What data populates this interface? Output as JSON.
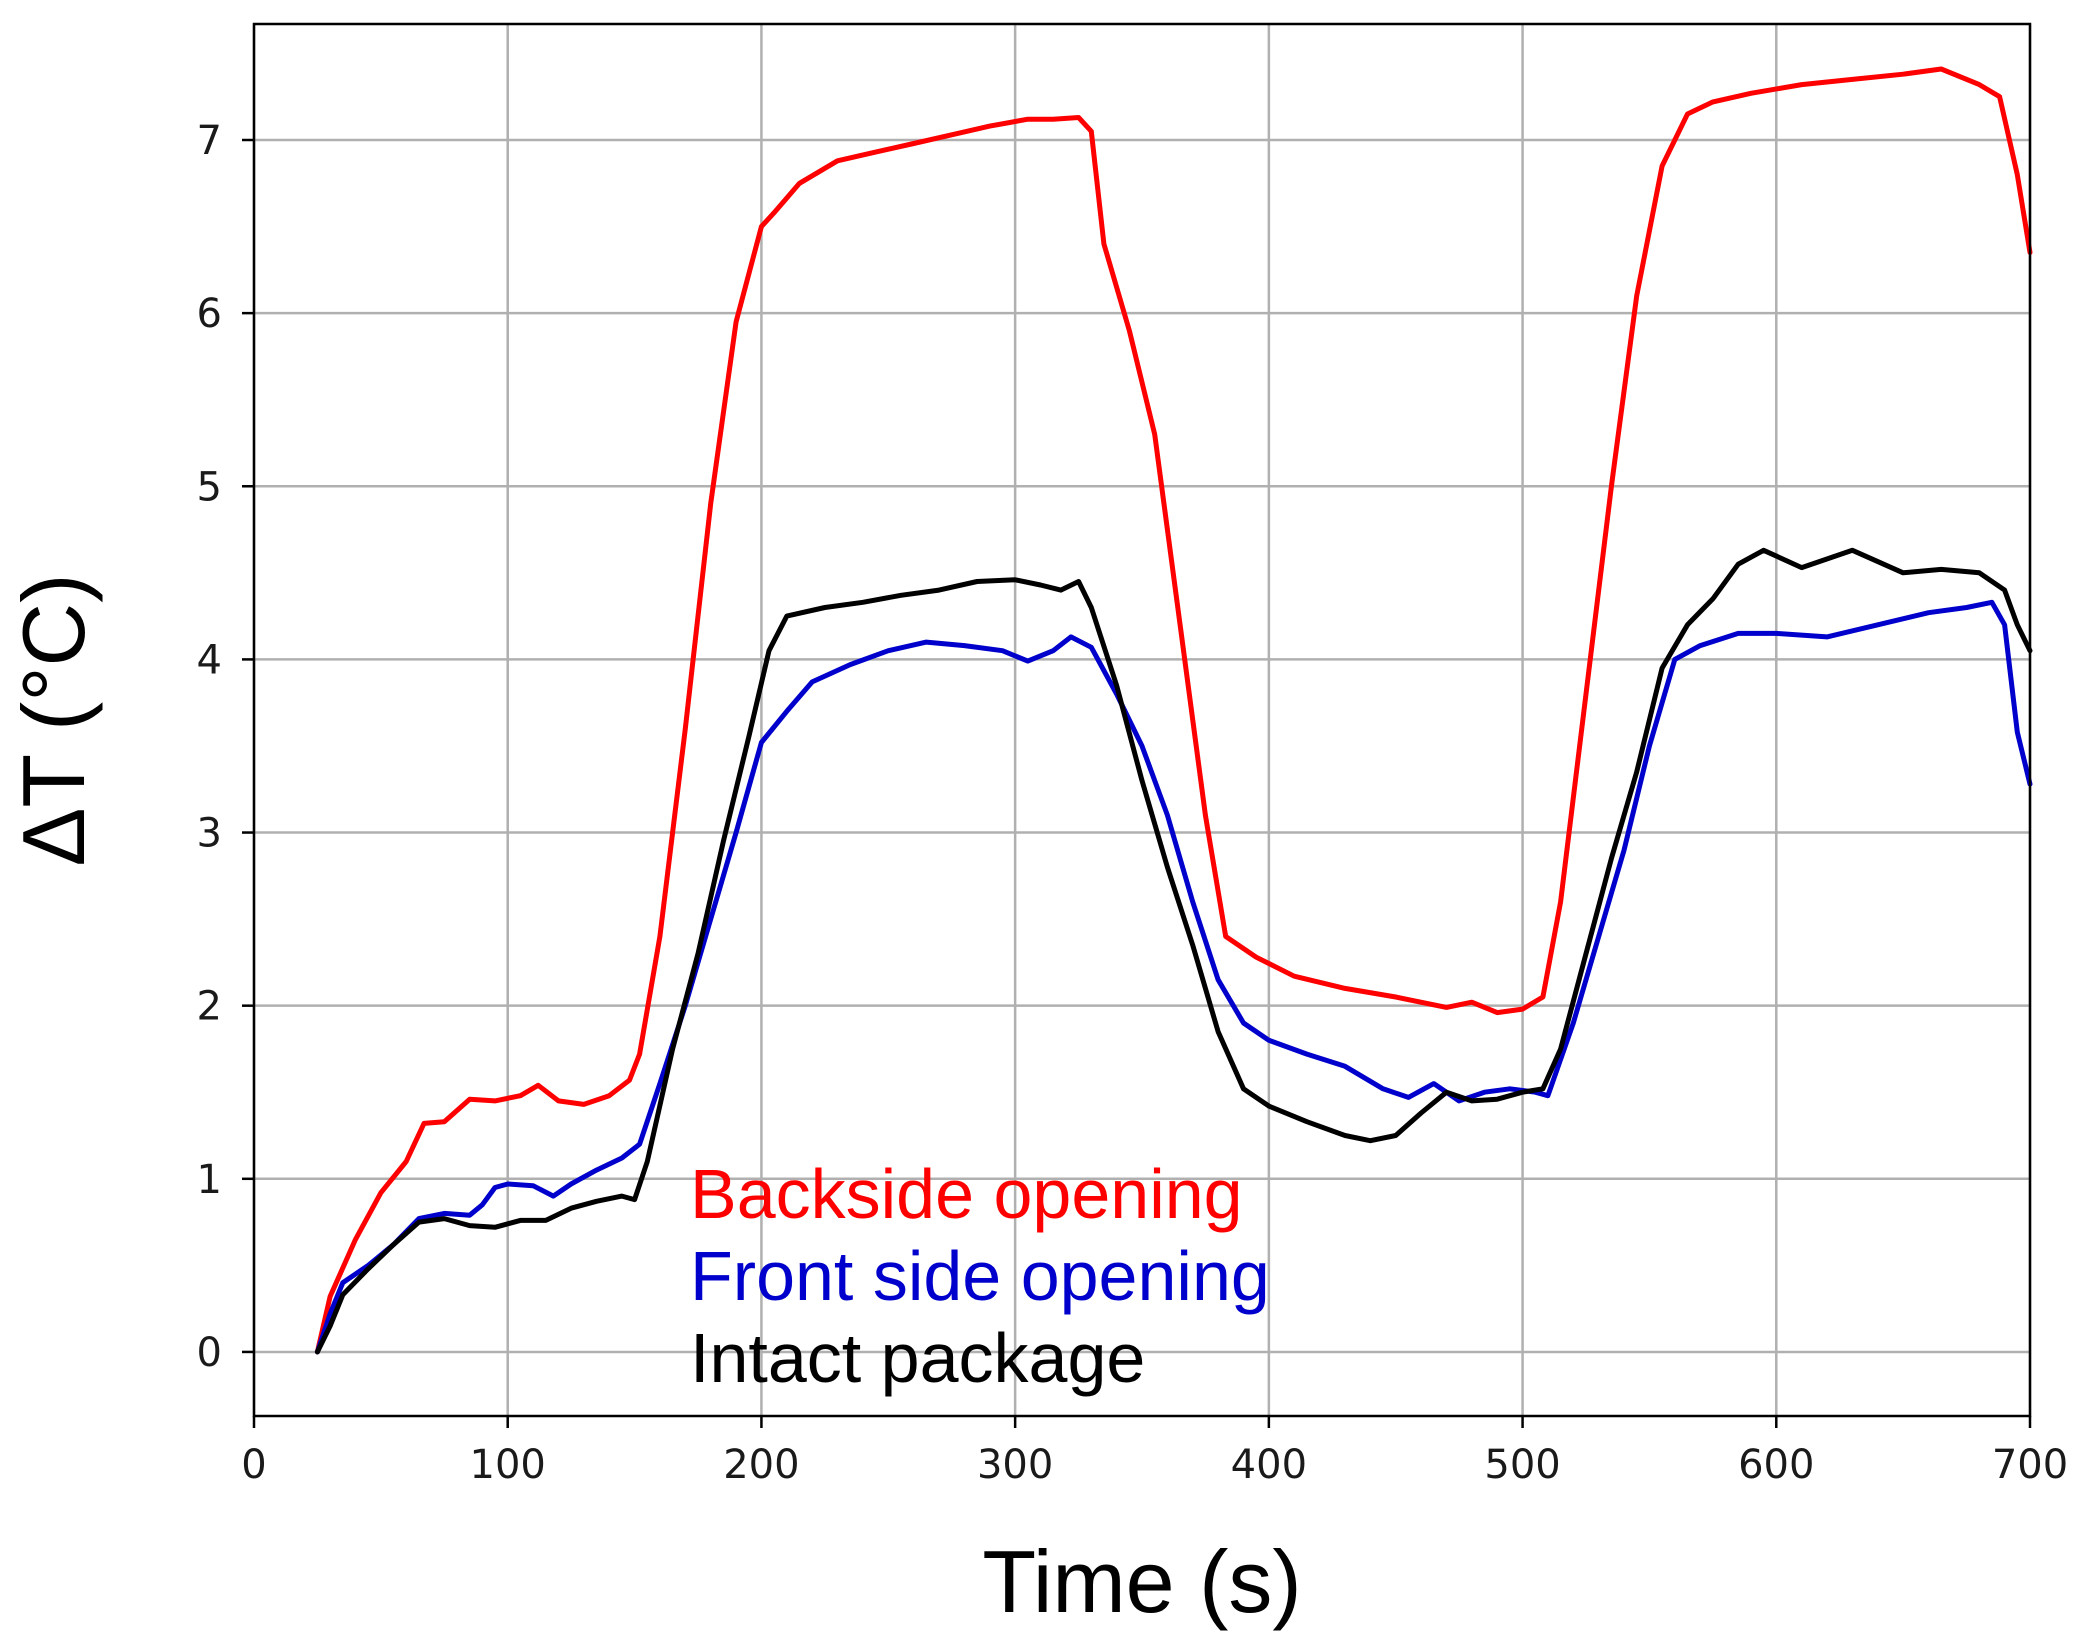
{
  "chart_data": {
    "type": "line",
    "title": "",
    "xlabel": "Time (s)",
    "ylabel": "ΔT (°C)",
    "xlim": [
      0,
      700
    ],
    "ylim": [
      -0.37,
      7.67
    ],
    "xticks": [
      0,
      100,
      200,
      300,
      400,
      500,
      600,
      700
    ],
    "yticks": [
      0,
      1,
      2,
      3,
      4,
      5,
      6,
      7
    ],
    "grid": true,
    "legend_position": "lower-center",
    "series": [
      {
        "name": "Backside opening",
        "color": "#ff0000",
        "x": [
          25,
          30,
          40,
          50,
          60,
          67,
          75,
          85,
          95,
          105,
          112,
          120,
          130,
          140,
          148,
          152,
          160,
          170,
          180,
          190,
          200,
          205,
          215,
          230,
          245,
          260,
          275,
          290,
          305,
          315,
          325,
          330,
          335,
          345,
          355,
          365,
          375,
          383,
          395,
          410,
          430,
          450,
          470,
          480,
          490,
          500,
          508,
          515,
          525,
          535,
          545,
          555,
          565,
          575,
          590,
          610,
          630,
          650,
          665,
          680,
          688,
          695,
          700
        ],
        "y": [
          0.0,
          0.32,
          0.65,
          0.92,
          1.1,
          1.32,
          1.33,
          1.46,
          1.45,
          1.48,
          1.54,
          1.45,
          1.43,
          1.48,
          1.57,
          1.72,
          2.4,
          3.6,
          4.9,
          5.95,
          6.5,
          6.58,
          6.75,
          6.88,
          6.93,
          6.98,
          7.03,
          7.08,
          7.12,
          7.12,
          7.13,
          7.05,
          6.4,
          5.9,
          5.3,
          4.2,
          3.1,
          2.4,
          2.28,
          2.17,
          2.1,
          2.05,
          1.99,
          2.02,
          1.96,
          1.98,
          2.05,
          2.6,
          3.8,
          5.0,
          6.1,
          6.85,
          7.15,
          7.22,
          7.27,
          7.32,
          7.35,
          7.38,
          7.41,
          7.32,
          7.25,
          6.8,
          6.35
        ]
      },
      {
        "name": "Front side opening",
        "color": "#0000cc",
        "x": [
          25,
          30,
          35,
          45,
          55,
          65,
          75,
          85,
          90,
          95,
          100,
          110,
          118,
          125,
          135,
          145,
          152,
          160,
          170,
          180,
          190,
          200,
          210,
          220,
          235,
          250,
          265,
          280,
          295,
          305,
          315,
          322,
          330,
          340,
          350,
          360,
          370,
          380,
          390,
          400,
          415,
          430,
          445,
          455,
          465,
          475,
          485,
          495,
          505,
          510,
          520,
          530,
          540,
          550,
          560,
          570,
          585,
          600,
          620,
          640,
          660,
          675,
          685,
          690,
          695,
          700
        ],
        "y": [
          0.0,
          0.22,
          0.4,
          0.5,
          0.62,
          0.77,
          0.8,
          0.79,
          0.85,
          0.95,
          0.97,
          0.96,
          0.9,
          0.97,
          1.05,
          1.12,
          1.2,
          1.55,
          2.0,
          2.5,
          3.0,
          3.52,
          3.7,
          3.87,
          3.97,
          4.05,
          4.1,
          4.08,
          4.05,
          3.99,
          4.05,
          4.13,
          4.07,
          3.8,
          3.5,
          3.1,
          2.6,
          2.15,
          1.9,
          1.8,
          1.72,
          1.65,
          1.52,
          1.47,
          1.55,
          1.45,
          1.5,
          1.52,
          1.5,
          1.48,
          1.9,
          2.4,
          2.9,
          3.5,
          4.0,
          4.08,
          4.15,
          4.15,
          4.13,
          4.2,
          4.27,
          4.3,
          4.33,
          4.2,
          3.58,
          3.28
        ]
      },
      {
        "name": "Intact package",
        "color": "#000000",
        "x": [
          25,
          30,
          35,
          45,
          55,
          65,
          75,
          85,
          95,
          105,
          115,
          125,
          135,
          145,
          150,
          155,
          165,
          175,
          185,
          195,
          203,
          210,
          225,
          240,
          255,
          270,
          285,
          300,
          310,
          318,
          325,
          330,
          340,
          350,
          360,
          370,
          380,
          390,
          400,
          415,
          430,
          440,
          450,
          460,
          470,
          480,
          490,
          500,
          508,
          515,
          525,
          535,
          545,
          555,
          565,
          575,
          585,
          595,
          610,
          630,
          650,
          665,
          680,
          690,
          695,
          700
        ],
        "y": [
          0.0,
          0.15,
          0.33,
          0.48,
          0.62,
          0.75,
          0.77,
          0.73,
          0.72,
          0.76,
          0.76,
          0.83,
          0.87,
          0.9,
          0.88,
          1.1,
          1.75,
          2.3,
          2.95,
          3.55,
          4.05,
          4.25,
          4.3,
          4.33,
          4.37,
          4.4,
          4.45,
          4.46,
          4.43,
          4.4,
          4.45,
          4.3,
          3.85,
          3.3,
          2.8,
          2.35,
          1.85,
          1.52,
          1.42,
          1.33,
          1.25,
          1.22,
          1.25,
          1.38,
          1.5,
          1.45,
          1.46,
          1.5,
          1.52,
          1.75,
          2.3,
          2.85,
          3.35,
          3.95,
          4.2,
          4.35,
          4.55,
          4.63,
          4.53,
          4.63,
          4.5,
          4.52,
          4.5,
          4.4,
          4.2,
          4.05
        ]
      }
    ]
  }
}
